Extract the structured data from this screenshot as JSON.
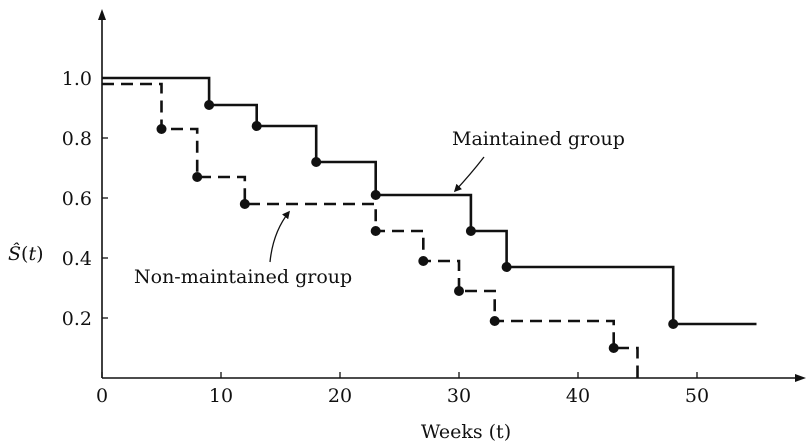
{
  "chart_data": {
    "type": "line",
    "step": true,
    "xlabel": "Weeks (t)",
    "ylabel": "Ŝ(t)",
    "xlim": [
      0,
      58
    ],
    "ylim": [
      0,
      1.2
    ],
    "x_ticks": [
      "0",
      "10",
      "20",
      "30",
      "40",
      "50"
    ],
    "x_tick_values": [
      0,
      10,
      20,
      30,
      40,
      50
    ],
    "y_ticks": [
      "0.2",
      "0.4",
      "0.6",
      "0.8",
      "1.0"
    ],
    "y_tick_values": [
      0.2,
      0.4,
      0.6,
      0.8,
      1.0
    ],
    "series": [
      {
        "name": "Maintained group",
        "line_style": "solid",
        "steps": [
          {
            "x": 0,
            "y": 1.0
          },
          {
            "x": 9,
            "y": 0.91
          },
          {
            "x": 13,
            "y": 0.84
          },
          {
            "x": 18,
            "y": 0.72
          },
          {
            "x": 23,
            "y": 0.61
          },
          {
            "x": 31,
            "y": 0.49
          },
          {
            "x": 34,
            "y": 0.37
          },
          {
            "x": 48,
            "y": 0.18
          },
          {
            "x": 55,
            "y": 0.18
          }
        ],
        "markers": [
          {
            "x": 9,
            "y": 0.91
          },
          {
            "x": 13,
            "y": 0.84
          },
          {
            "x": 18,
            "y": 0.72
          },
          {
            "x": 23,
            "y": 0.61
          },
          {
            "x": 31,
            "y": 0.49
          },
          {
            "x": 34,
            "y": 0.37
          },
          {
            "x": 48,
            "y": 0.18
          }
        ]
      },
      {
        "name": "Non-maintained group",
        "line_style": "dashed",
        "steps": [
          {
            "x": 0,
            "y": 0.98
          },
          {
            "x": 5,
            "y": 0.83
          },
          {
            "x": 8,
            "y": 0.67
          },
          {
            "x": 12,
            "y": 0.58
          },
          {
            "x": 23,
            "y": 0.49
          },
          {
            "x": 27,
            "y": 0.39
          },
          {
            "x": 30,
            "y": 0.29
          },
          {
            "x": 33,
            "y": 0.19
          },
          {
            "x": 43,
            "y": 0.1
          },
          {
            "x": 45,
            "y": 0.0
          }
        ],
        "markers": [
          {
            "x": 5,
            "y": 0.83
          },
          {
            "x": 8,
            "y": 0.67
          },
          {
            "x": 12,
            "y": 0.58
          },
          {
            "x": 23,
            "y": 0.49
          },
          {
            "x": 27,
            "y": 0.39
          },
          {
            "x": 30,
            "y": 0.29
          },
          {
            "x": 33,
            "y": 0.19
          },
          {
            "x": 43,
            "y": 0.1
          }
        ]
      }
    ],
    "annotations": [
      {
        "text": "Maintained group",
        "series": "Maintained group"
      },
      {
        "text": "Non-maintained group",
        "series": "Non-maintained group"
      }
    ]
  }
}
